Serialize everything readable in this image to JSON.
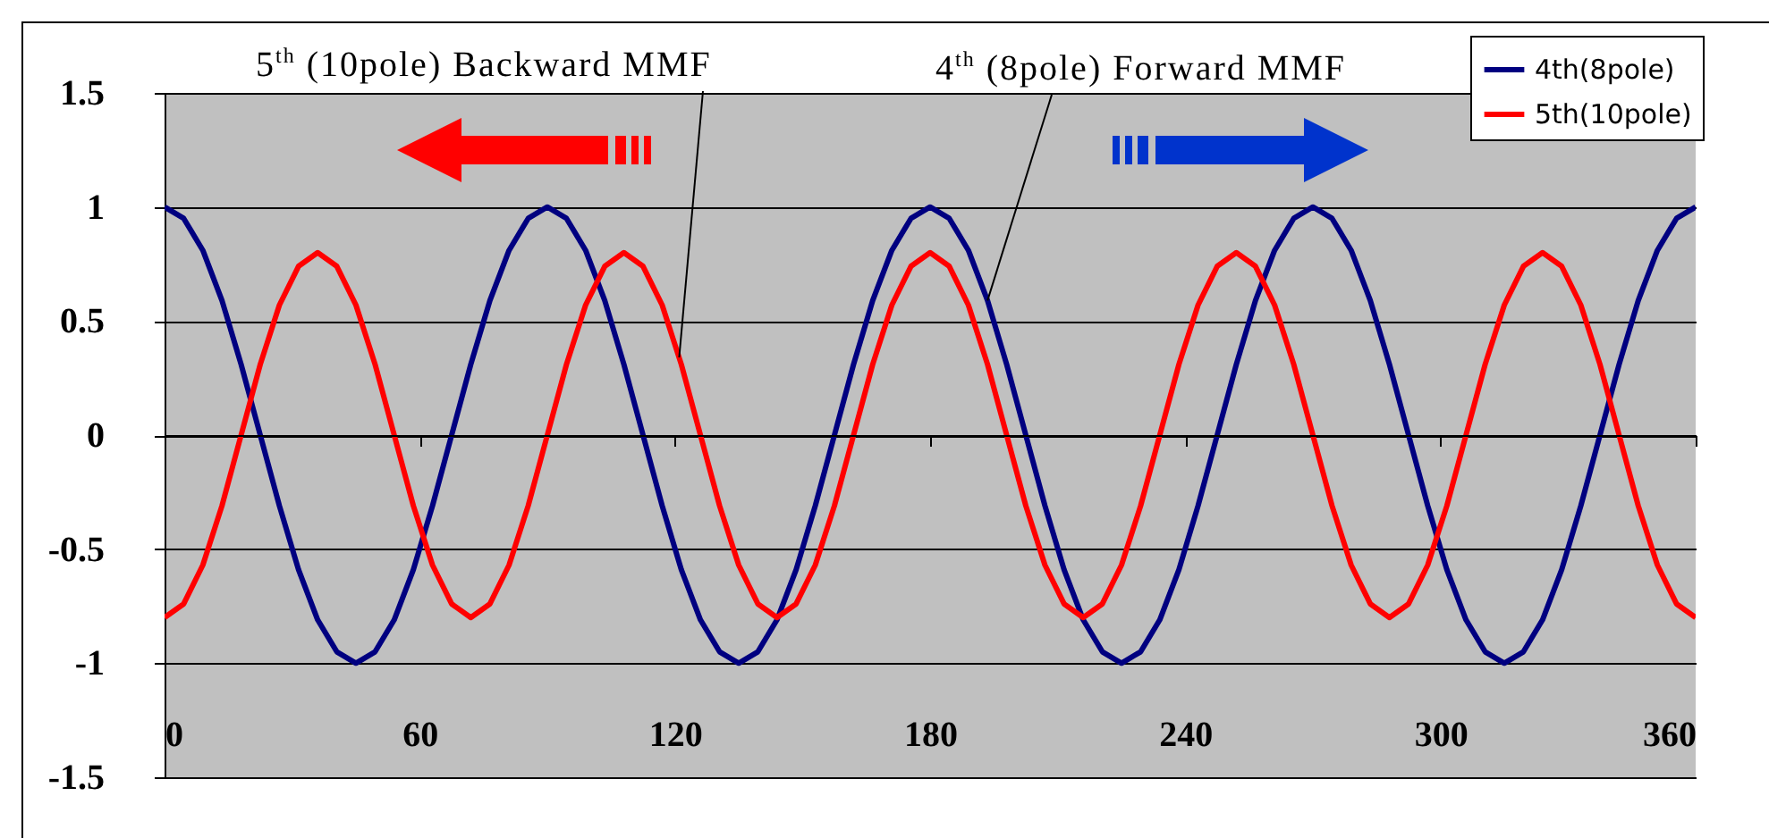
{
  "chart_data": {
    "type": "line",
    "x": [
      0,
      4.5,
      9,
      13.5,
      18,
      22.5,
      27,
      31.5,
      36,
      40.5,
      45,
      49.5,
      54,
      58.5,
      63,
      67.5,
      72,
      76.5,
      81,
      85.5,
      90,
      94.5,
      99,
      103.5,
      108,
      112.5,
      117,
      121.5,
      126,
      130.5,
      135,
      139.5,
      144,
      148.5,
      153,
      157.5,
      162,
      166.5,
      171,
      175.5,
      180,
      184.5,
      189,
      193.5,
      198,
      202.5,
      207,
      211.5,
      216,
      220.5,
      225,
      229.5,
      234,
      238.5,
      243,
      247.5,
      252,
      256.5,
      261,
      265.5,
      270,
      274.5,
      279,
      283.5,
      288,
      292.5,
      297,
      301.5,
      306,
      310.5,
      315,
      319.5,
      324,
      328.5,
      333,
      337.5,
      342,
      346.5,
      351,
      355.5,
      360
    ],
    "series": [
      {
        "name": "4th(8pole)",
        "color": "#000080",
        "values": [
          1,
          0.95,
          0.81,
          0.59,
          0.31,
          0,
          -0.31,
          -0.59,
          -0.81,
          -0.95,
          -1,
          -0.95,
          -0.81,
          -0.59,
          -0.31,
          0,
          0.31,
          0.59,
          0.81,
          0.95,
          1,
          0.95,
          0.81,
          0.59,
          0.31,
          0,
          -0.31,
          -0.59,
          -0.81,
          -0.95,
          -1,
          -0.95,
          -0.81,
          -0.59,
          -0.31,
          0,
          0.31,
          0.59,
          0.81,
          0.95,
          1,
          0.95,
          0.81,
          0.59,
          0.31,
          0,
          -0.31,
          -0.59,
          -0.81,
          -0.95,
          -1,
          -0.95,
          -0.81,
          -0.59,
          -0.31,
          0,
          0.31,
          0.59,
          0.81,
          0.95,
          1,
          0.95,
          0.81,
          0.59,
          0.31,
          0,
          -0.31,
          -0.59,
          -0.81,
          -0.95,
          -1,
          -0.95,
          -0.81,
          -0.59,
          -0.31,
          0,
          0.31,
          0.59,
          0.81,
          0.95,
          1
        ]
      },
      {
        "name": "5th(10pole)",
        "color": "#ff0000",
        "values": [
          -0.8,
          -0.74,
          -0.57,
          -0.31,
          0,
          0.31,
          0.57,
          0.74,
          0.8,
          0.74,
          0.57,
          0.31,
          0,
          -0.31,
          -0.57,
          -0.74,
          -0.8,
          -0.74,
          -0.57,
          -0.31,
          0,
          0.31,
          0.57,
          0.74,
          0.8,
          0.74,
          0.57,
          0.31,
          0,
          -0.31,
          -0.57,
          -0.74,
          -0.8,
          -0.74,
          -0.57,
          -0.31,
          0,
          0.31,
          0.57,
          0.74,
          0.8,
          0.74,
          0.57,
          0.31,
          0,
          -0.31,
          -0.57,
          -0.74,
          -0.8,
          -0.74,
          -0.57,
          -0.31,
          0,
          0.31,
          0.57,
          0.74,
          0.8,
          0.74,
          0.57,
          0.31,
          0,
          -0.31,
          -0.57,
          -0.74,
          -0.8,
          -0.74,
          -0.57,
          -0.31,
          0,
          0.31,
          0.57,
          0.74,
          0.8,
          0.74,
          0.57,
          0.31,
          0,
          -0.31,
          -0.57,
          -0.74,
          -0.8
        ]
      }
    ],
    "xlim": [
      0,
      360
    ],
    "xticks": [
      0,
      60,
      120,
      180,
      240,
      300,
      360
    ],
    "ylim": [
      -1.5,
      1.5
    ],
    "yticks": [
      -1.5,
      -1,
      -0.5,
      0,
      0.5,
      1,
      1.5
    ],
    "grid": "y",
    "legend": "top right",
    "marker": "none",
    "line_style": "solid",
    "annotations": [
      {
        "text": "5$^{th}$ (10pole) Backward MMF",
        "x": 121,
        "y": 0.34
      },
      {
        "text": "4$^{th}$ (8pole) Forward MMF",
        "x": 193.5,
        "y": 0.59
      }
    ]
  }
}
